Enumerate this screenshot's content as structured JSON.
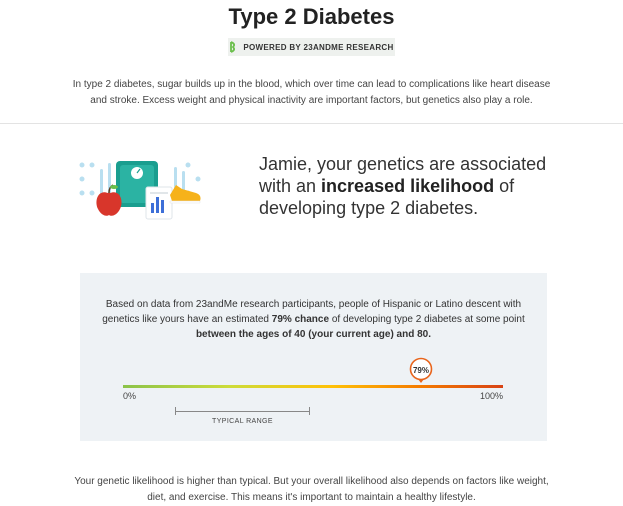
{
  "header": {
    "title": "Type 2 Diabetes",
    "badge_text": "POWERED BY 23ANDME RESEARCH",
    "intro": "In type 2 diabetes, sugar builds up in the blood, which over time can lead to complications like heart disease and stroke. Excess weight and physical inactivity are important factors, but genetics also play a role."
  },
  "result": {
    "text_before": "Jamie, your genetics are associated with an ",
    "text_bold": "increased likelihood",
    "text_after": " of developing type 2 diabetes."
  },
  "likelihood_panel": {
    "text_1": "Based on data from 23andMe research participants, people of Hispanic or Latino descent with genetics like yours have an estimated ",
    "text_bold_1": "79% chance",
    "text_2": " of developing type 2 diabetes at some point ",
    "text_bold_2": "between the ages of 40 (your current age) and 80.",
    "marker_label": "79%",
    "marker_value": 0.79,
    "scale_min_label": "0%",
    "scale_max_label": "100%",
    "typical_range_label": "TYPICAL RANGE",
    "typical_range": [
      0.14,
      0.49
    ]
  },
  "footer": {
    "text": "Your genetic likelihood is higher than typical. But your overall likelihood also depends on factors like weight, diet, and exercise. This means it's important to maintain a healthy lifestyle."
  },
  "colors": {
    "accent_green": "#6abf4b",
    "marker_orange": "#e8641b",
    "panel_bg": "#eef2f5"
  },
  "icons": [
    "23andme-logo-icon",
    "scale-icon",
    "apple-icon",
    "report-chart-icon",
    "sneaker-icon"
  ]
}
